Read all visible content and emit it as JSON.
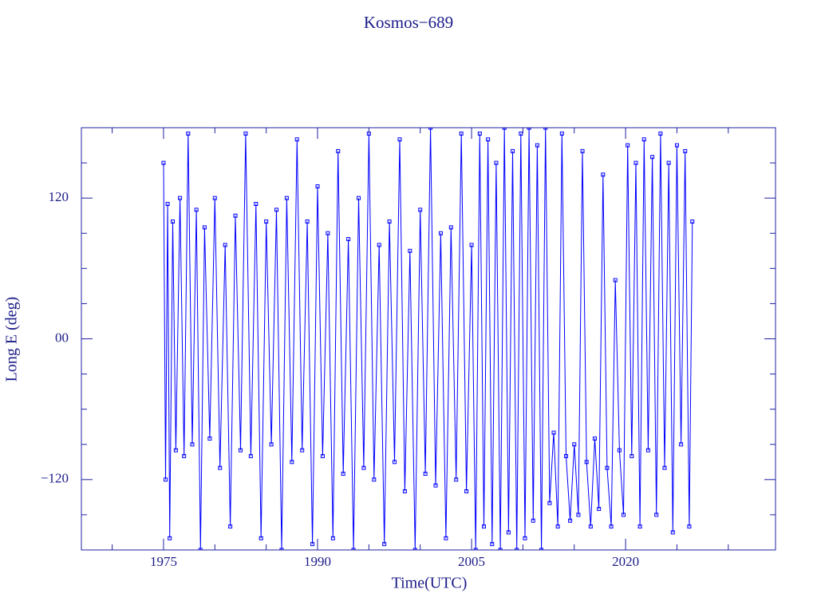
{
  "chart_data": {
    "type": "line",
    "title": "Kosmos−689",
    "xlabel": "Time(UTC)",
    "ylabel": "Long E (deg)",
    "xlim": [
      1967,
      2034.6
    ],
    "ylim": [
      -180,
      180
    ],
    "xticks": [
      1975,
      1990,
      2005,
      2020
    ],
    "xminorticks": [
      1970,
      1980,
      1985,
      1995,
      2000,
      2010,
      2015,
      2025,
      2030
    ],
    "yticks": [
      {
        "value": -120,
        "label": "−120"
      },
      {
        "value": 0,
        "label": "00"
      },
      120
    ],
    "yminorticks": [
      -150,
      -90,
      -60,
      -30,
      30,
      60,
      90,
      150
    ],
    "color": "#0000ff",
    "x": [
      1975.0,
      1975.2,
      1975.4,
      1975.6,
      1975.9,
      1976.2,
      1976.6,
      1977.0,
      1977.4,
      1977.8,
      1978.2,
      1978.6,
      1979.0,
      1979.5,
      1980.0,
      1980.5,
      1981.0,
      1981.5,
      1982.0,
      1982.5,
      1983.0,
      1983.5,
      1984.0,
      1984.5,
      1985.0,
      1985.5,
      1986.0,
      1986.5,
      1987.0,
      1987.5,
      1988.0,
      1988.5,
      1989.0,
      1989.5,
      1990.0,
      1990.5,
      1991.0,
      1991.5,
      1992.0,
      1992.5,
      1993.0,
      1993.5,
      1994.0,
      1994.5,
      1995.0,
      1995.5,
      1996.0,
      1996.5,
      1997.0,
      1997.5,
      1998.0,
      1998.5,
      1999.0,
      1999.5,
      2000.0,
      2000.5,
      2001.0,
      2001.5,
      2002.0,
      2002.5,
      2003.0,
      2003.5,
      2004.0,
      2004.5,
      2005.0,
      2005.4,
      2005.8,
      2006.2,
      2006.6,
      2007.0,
      2007.4,
      2007.8,
      2008.2,
      2008.6,
      2009.0,
      2009.4,
      2009.8,
      2010.2,
      2010.6,
      2011.0,
      2011.4,
      2011.8,
      2012.2,
      2012.6,
      2013.0,
      2013.4,
      2013.8,
      2014.2,
      2014.6,
      2015.0,
      2015.4,
      2015.8,
      2016.2,
      2016.6,
      2017.0,
      2017.4,
      2017.8,
      2018.2,
      2018.6,
      2019.0,
      2019.4,
      2019.8,
      2020.2,
      2020.6,
      2021.0,
      2021.4,
      2021.8,
      2022.2,
      2022.6,
      2023.0,
      2023.4,
      2023.8,
      2024.2,
      2024.6,
      2025.0,
      2025.4,
      2025.8,
      2026.2,
      2026.5
    ],
    "values": [
      150,
      -120,
      115,
      -170,
      100,
      -95,
      120,
      -100,
      175,
      -90,
      110,
      -180,
      95,
      -85,
      120,
      -110,
      80,
      -160,
      105,
      -95,
      175,
      -100,
      115,
      -170,
      100,
      -90,
      110,
      -180,
      120,
      -105,
      170,
      -95,
      100,
      -175,
      130,
      -100,
      90,
      -170,
      160,
      -115,
      85,
      -180,
      120,
      -110,
      175,
      -120,
      80,
      -175,
      100,
      -105,
      170,
      -130,
      75,
      -180,
      110,
      -115,
      180,
      -125,
      90,
      -170,
      95,
      -120,
      175,
      -130,
      80,
      -180,
      175,
      -160,
      170,
      -175,
      150,
      -180,
      180,
      -165,
      160,
      -180,
      175,
      -170,
      180,
      -155,
      165,
      -180,
      180,
      -140,
      -80,
      -160,
      175,
      -100,
      -155,
      -90,
      -150,
      160,
      -105,
      -160,
      -85,
      -145,
      140,
      -110,
      -160,
      50,
      -95,
      -150,
      165,
      -100,
      150,
      -160,
      170,
      -95,
      155,
      -150,
      175,
      -110,
      150,
      -165,
      165,
      -90,
      160,
      -160,
      100
    ]
  }
}
